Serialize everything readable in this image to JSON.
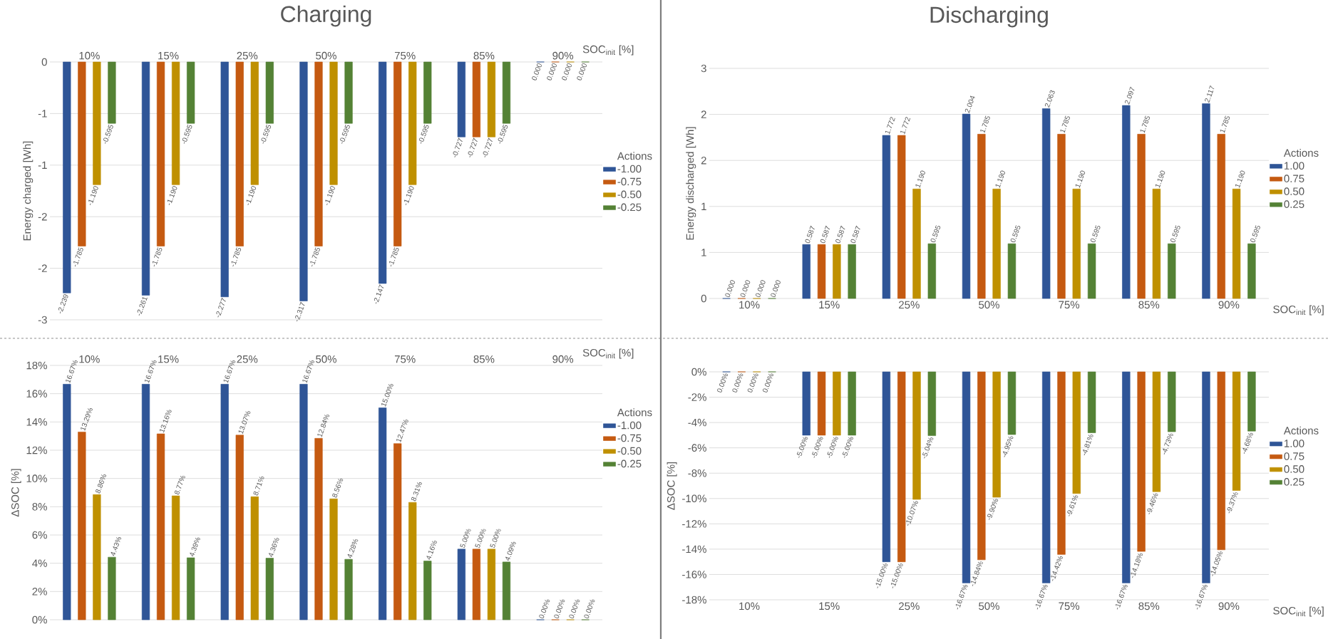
{
  "chart_data": [
    {
      "type": "bar",
      "title": "Charging",
      "xlabel": "SOC$_{init}$ [%]",
      "ylabel": "Energy charged [Wh]",
      "legend_title": "Actions",
      "legend": "right",
      "grid": "y",
      "categories": [
        "10%",
        "15%",
        "25%",
        "50%",
        "75%",
        "85%",
        "90%"
      ],
      "ylim": [
        -2.5,
        0
      ],
      "yticks": [
        {
          "value": 0,
          "label": "0"
        },
        {
          "value": -0.5,
          "label": "-1"
        },
        {
          "value": -1,
          "label": "-1"
        },
        {
          "value": -1.5,
          "label": "-2"
        },
        {
          "value": -2,
          "label": "-2"
        },
        {
          "value": -2.5,
          "label": "-3"
        }
      ],
      "series": [
        {
          "name": "-1.00",
          "color": "#2f5597",
          "values": [
            -2.239,
            -2.261,
            -2.277,
            -2.317,
            -2.147,
            -0.727,
            0
          ],
          "value_labels": [
            "-2.239",
            "-2.261",
            "-2.277",
            "-2.317",
            "-2.147",
            "-0.727",
            "0.000"
          ]
        },
        {
          "name": "-0.75",
          "color": "#c55a11",
          "values": [
            -1.785,
            -1.785,
            -1.785,
            -1.785,
            -1.785,
            -0.727,
            0
          ],
          "value_labels": [
            "-1.785",
            "-1.785",
            "-1.785",
            "-1.785",
            "-1.785",
            "-0.727",
            "0.000"
          ]
        },
        {
          "name": "-0.50",
          "color": "#bf9000",
          "values": [
            -1.19,
            -1.19,
            -1.19,
            -1.19,
            -1.19,
            -0.727,
            0
          ],
          "value_labels": [
            "-1.190",
            "-1.190",
            "-1.190",
            "-1.190",
            "-1.190",
            "-0.727",
            "0.000"
          ]
        },
        {
          "name": "-0.25",
          "color": "#548235",
          "values": [
            -0.595,
            -0.595,
            -0.595,
            -0.595,
            -0.595,
            -0.595,
            0
          ],
          "value_labels": [
            "-0.595",
            "-0.595",
            "-0.595",
            "-0.595",
            "-0.595",
            "-0.595",
            "0.000"
          ]
        }
      ]
    },
    {
      "type": "bar",
      "title": "Discharging",
      "xlabel": "SOC$_{init}$ [%]",
      "ylabel": "Energy discharged [Wh]",
      "legend_title": "Actions",
      "legend": "right",
      "grid": "y",
      "categories": [
        "10%",
        "15%",
        "25%",
        "50%",
        "75%",
        "85%",
        "90%"
      ],
      "ylim": [
        0,
        2.5
      ],
      "yticks": [
        {
          "value": 0,
          "label": "0"
        },
        {
          "value": 0.5,
          "label": "1"
        },
        {
          "value": 1,
          "label": "1"
        },
        {
          "value": 1.5,
          "label": "2"
        },
        {
          "value": 2,
          "label": "2"
        },
        {
          "value": 2.5,
          "label": "3"
        }
      ],
      "series": [
        {
          "name": "1.00",
          "color": "#2f5597",
          "values": [
            0,
            0.587,
            1.772,
            2.004,
            2.063,
            2.097,
            2.117
          ],
          "value_labels": [
            "0.000",
            "0.587",
            "1.772",
            "2.004",
            "2.063",
            "2.097",
            "2.117"
          ]
        },
        {
          "name": "0.75",
          "color": "#c55a11",
          "values": [
            0,
            0.587,
            1.772,
            1.785,
            1.785,
            1.785,
            1.785
          ],
          "value_labels": [
            "0.000",
            "0.587",
            "1.772",
            "1.785",
            "1.785",
            "1.785",
            "1.785"
          ]
        },
        {
          "name": "0.50",
          "color": "#bf9000",
          "values": [
            0,
            0.587,
            1.19,
            1.19,
            1.19,
            1.19,
            1.19
          ],
          "value_labels": [
            "0.000",
            "0.587",
            "1.190",
            "1.190",
            "1.190",
            "1.190",
            "1.190"
          ]
        },
        {
          "name": "0.25",
          "color": "#548235",
          "values": [
            0,
            0.587,
            0.595,
            0.595,
            0.595,
            0.595,
            0.595
          ],
          "value_labels": [
            "0.000",
            "0.587",
            "0.595",
            "0.595",
            "0.595",
            "0.595",
            "0.595"
          ]
        }
      ]
    },
    {
      "type": "bar",
      "xlabel": "SOC$_{init}$ [%]",
      "ylabel": "ΔSOC [%]",
      "legend_title": "Actions",
      "legend": "right",
      "grid": "y",
      "categories": [
        "10%",
        "15%",
        "25%",
        "50%",
        "75%",
        "85%",
        "90%"
      ],
      "ylim": [
        0,
        18
      ],
      "yticks": [
        {
          "value": 0,
          "label": "0%"
        },
        {
          "value": 2,
          "label": "2%"
        },
        {
          "value": 4,
          "label": "4%"
        },
        {
          "value": 6,
          "label": "6%"
        },
        {
          "value": 8,
          "label": "8%"
        },
        {
          "value": 10,
          "label": "10%"
        },
        {
          "value": 12,
          "label": "12%"
        },
        {
          "value": 14,
          "label": "14%"
        },
        {
          "value": 16,
          "label": "16%"
        },
        {
          "value": 18,
          "label": "18%"
        }
      ],
      "series": [
        {
          "name": "-1.00",
          "color": "#2f5597",
          "values": [
            16.67,
            16.67,
            16.67,
            16.67,
            15.0,
            5.0,
            0
          ],
          "value_labels": [
            "16.67%",
            "16.67%",
            "16.67%",
            "16.67%",
            "15.00%",
            "5.00%",
            "0.00%"
          ]
        },
        {
          "name": "-0.75",
          "color": "#c55a11",
          "values": [
            13.29,
            13.16,
            13.07,
            12.84,
            12.47,
            5.0,
            0
          ],
          "value_labels": [
            "13.29%",
            "13.16%",
            "13.07%",
            "12.84%",
            "12.47%",
            "5.00%",
            "0.00%"
          ]
        },
        {
          "name": "-0.50",
          "color": "#bf9000",
          "values": [
            8.86,
            8.77,
            8.71,
            8.56,
            8.31,
            5.0,
            0
          ],
          "value_labels": [
            "8.86%",
            "8.77%",
            "8.71%",
            "8.56%",
            "8.31%",
            "5.00%",
            "0.00%"
          ]
        },
        {
          "name": "-0.25",
          "color": "#548235",
          "values": [
            4.43,
            4.39,
            4.36,
            4.28,
            4.16,
            4.09,
            0
          ],
          "value_labels": [
            "4.43%",
            "4.39%",
            "4.36%",
            "4.28%",
            "4.16%",
            "4.09%",
            "0.00%"
          ]
        }
      ]
    },
    {
      "type": "bar",
      "xlabel": "SOC$_{init}$ [%]",
      "ylabel": "ΔSOC [%]",
      "legend_title": "Actions",
      "legend": "right",
      "grid": "y",
      "categories": [
        "10%",
        "15%",
        "25%",
        "50%",
        "75%",
        "85%",
        "90%"
      ],
      "ylim": [
        -18,
        0
      ],
      "yticks": [
        {
          "value": 0,
          "label": "0%"
        },
        {
          "value": -2,
          "label": "-2%"
        },
        {
          "value": -4,
          "label": "-4%"
        },
        {
          "value": -6,
          "label": "-6%"
        },
        {
          "value": -8,
          "label": "-8%"
        },
        {
          "value": -10,
          "label": "-10%"
        },
        {
          "value": -12,
          "label": "-12%"
        },
        {
          "value": -14,
          "label": "-14%"
        },
        {
          "value": -16,
          "label": "-16%"
        },
        {
          "value": -18,
          "label": "-18%"
        }
      ],
      "series": [
        {
          "name": "1.00",
          "color": "#2f5597",
          "values": [
            0,
            -5.0,
            -15.0,
            -16.67,
            -16.67,
            -16.67,
            -16.67
          ],
          "value_labels": [
            "0.00%",
            "-5.00%",
            "-15.00%",
            "-16.67%",
            "-16.67%",
            "-16.67%",
            "-16.67%"
          ]
        },
        {
          "name": "0.75",
          "color": "#c55a11",
          "values": [
            0,
            -5.0,
            -15.0,
            -14.84,
            -14.42,
            -14.18,
            -14.05
          ],
          "value_labels": [
            "0.00%",
            "-5.00%",
            "-15.00%",
            "-14.84%",
            "-14.42%",
            "-14.18%",
            "-14.05%"
          ]
        },
        {
          "name": "0.50",
          "color": "#bf9000",
          "values": [
            0,
            -5.0,
            -10.07,
            -9.9,
            -9.61,
            -9.46,
            -9.37
          ],
          "value_labels": [
            "0.00%",
            "-5.00%",
            "-10.07%",
            "-9.90%",
            "-9.61%",
            "-9.46%",
            "-9.37%"
          ]
        },
        {
          "name": "0.25",
          "color": "#548235",
          "values": [
            0,
            -5.0,
            -5.04,
            -4.95,
            -4.81,
            -4.73,
            -4.68
          ],
          "value_labels": [
            "0.00%",
            "-5.00%",
            "-5.04%",
            "-4.95%",
            "-4.81%",
            "-4.73%",
            "-4.68%"
          ]
        }
      ]
    }
  ]
}
